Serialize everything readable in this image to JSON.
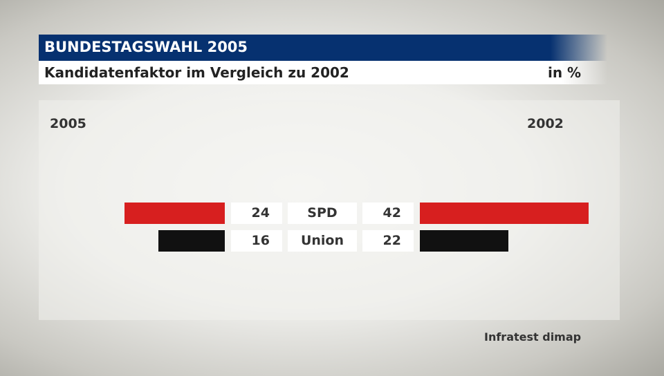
{
  "header": {
    "title": "BUNDESTAGSWAHL 2005",
    "subtitle": "Kandidatenfaktor im Vergleich zu 2002",
    "unit": "in %"
  },
  "source": "Infratest dimap",
  "chart_data": {
    "type": "bar",
    "title": "Kandidatenfaktor im Vergleich zu 2002",
    "categories": [
      "SPD",
      "Union"
    ],
    "series": [
      {
        "name": "2005",
        "values": [
          24,
          16
        ]
      },
      {
        "name": "2002",
        "values": [
          42,
          22
        ]
      }
    ],
    "colors": {
      "SPD": "#d71f1f",
      "Union": "#111111"
    },
    "layout": "butterfly"
  }
}
